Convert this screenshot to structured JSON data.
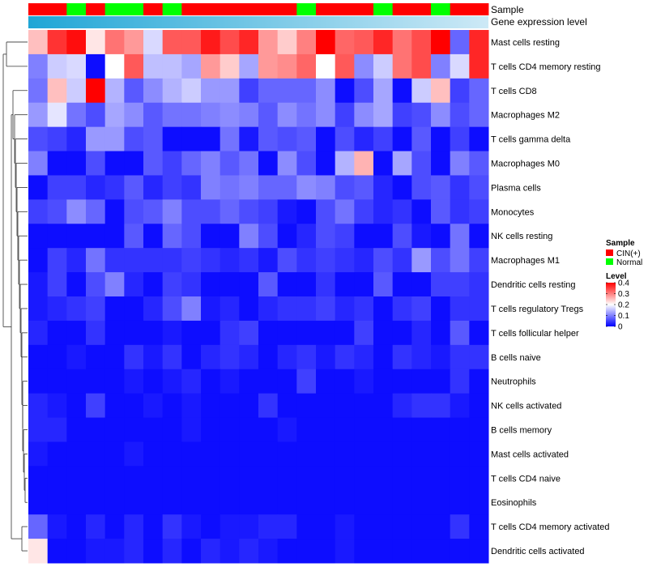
{
  "chart_data": {
    "type": "heatmap",
    "annotation_titles": [
      "Sample",
      "Gene expression level"
    ],
    "rows": [
      "Mast cells resting",
      "T cells CD4 memory resting",
      "T cells CD8",
      "Macrophages M2",
      "T cells gamma delta",
      "Macrophages M0",
      "Plasma cells",
      "Monocytes",
      "NK cells resting",
      "Macrophages M1",
      "Dendritic cells resting",
      "T cells regulatory  Tregs",
      "T cells follicular helper",
      "B cells naive",
      "Neutrophils",
      "NK cells activated",
      "B cells memory",
      "Mast cells activated",
      "T cells CD4 naive",
      "Eosinophils",
      "T cells CD4 memory activated",
      "Dendritic cells activated"
    ],
    "sample_groups": [
      "CIN(+)",
      "CIN(+)",
      "Normal",
      "CIN(+)",
      "Normal",
      "Normal",
      "CIN(+)",
      "Normal",
      "CIN(+)",
      "CIN(+)",
      "CIN(+)",
      "CIN(+)",
      "CIN(+)",
      "CIN(+)",
      "Normal",
      "CIN(+)",
      "CIN(+)",
      "CIN(+)",
      "Normal",
      "CIN(+)",
      "CIN(+)",
      "Normal",
      "CIN(+)",
      "CIN(+)"
    ],
    "values": [
      [
        0.25,
        0.36,
        0.39,
        0.22,
        0.31,
        0.28,
        0.17,
        0.33,
        0.33,
        0.38,
        0.34,
        0.37,
        0.28,
        0.24,
        0.3,
        0.4,
        0.32,
        0.33,
        0.37,
        0.31,
        0.34,
        0.4,
        0.08,
        0.37
      ],
      [
        0.1,
        0.16,
        0.17,
        0.01,
        0.2,
        0.33,
        0.15,
        0.15,
        0.13,
        0.28,
        0.24,
        0.13,
        0.28,
        0.29,
        0.32,
        0.2,
        0.33,
        0.11,
        0.16,
        0.31,
        0.34,
        0.1,
        0.17,
        0.37
      ],
      [
        0.09,
        0.25,
        0.16,
        0.4,
        0.14,
        0.07,
        0.11,
        0.14,
        0.16,
        0.12,
        0.12,
        0.05,
        0.08,
        0.08,
        0.08,
        0.11,
        0.01,
        0.06,
        0.13,
        0.01,
        0.16,
        0.25,
        0.05,
        0.08
      ],
      [
        0.12,
        0.18,
        0.09,
        0.06,
        0.13,
        0.11,
        0.07,
        0.09,
        0.09,
        0.1,
        0.11,
        0.1,
        0.07,
        0.11,
        0.09,
        0.11,
        0.05,
        0.11,
        0.13,
        0.05,
        0.06,
        0.11,
        0.06,
        0.08
      ],
      [
        0.06,
        0.05,
        0.03,
        0.12,
        0.12,
        0.06,
        0.07,
        0.01,
        0.01,
        0.01,
        0.09,
        0.02,
        0.07,
        0.06,
        0.07,
        0.01,
        0.06,
        0.03,
        0.05,
        0.01,
        0.07,
        0.01,
        0.05,
        0.01
      ],
      [
        0.1,
        0.01,
        0.01,
        0.06,
        0.01,
        0.01,
        0.07,
        0.05,
        0.08,
        0.1,
        0.07,
        0.09,
        0.01,
        0.11,
        0.06,
        0.01,
        0.14,
        0.26,
        0.01,
        0.13,
        0.06,
        0.01,
        0.1,
        0.07
      ],
      [
        0.01,
        0.05,
        0.05,
        0.03,
        0.04,
        0.07,
        0.03,
        0.05,
        0.04,
        0.1,
        0.09,
        0.1,
        0.08,
        0.08,
        0.11,
        0.1,
        0.06,
        0.07,
        0.03,
        0.01,
        0.06,
        0.07,
        0.04,
        0.06
      ],
      [
        0.05,
        0.06,
        0.11,
        0.08,
        0.01,
        0.06,
        0.07,
        0.1,
        0.06,
        0.06,
        0.08,
        0.06,
        0.05,
        0.02,
        0.01,
        0.06,
        0.09,
        0.05,
        0.03,
        0.04,
        0.01,
        0.07,
        0.04,
        0.05
      ],
      [
        0.01,
        0.01,
        0.01,
        0.01,
        0.01,
        0.07,
        0.01,
        0.08,
        0.06,
        0.01,
        0.01,
        0.1,
        0.06,
        0.01,
        0.03,
        0.06,
        0.05,
        0.01,
        0.01,
        0.06,
        0.02,
        0.01,
        0.09,
        0.01
      ],
      [
        0.01,
        0.05,
        0.03,
        0.09,
        0.04,
        0.04,
        0.04,
        0.04,
        0.05,
        0.04,
        0.03,
        0.04,
        0.02,
        0.06,
        0.04,
        0.05,
        0.04,
        0.03,
        0.06,
        0.04,
        0.12,
        0.06,
        0.09,
        0.05
      ],
      [
        0.02,
        0.05,
        0.01,
        0.06,
        0.1,
        0.03,
        0.01,
        0.05,
        0.04,
        0.01,
        0.01,
        0.01,
        0.07,
        0.01,
        0.01,
        0.04,
        0.01,
        0.01,
        0.07,
        0.01,
        0.01,
        0.05,
        0.05,
        0.04
      ],
      [
        0.02,
        0.03,
        0.04,
        0.05,
        0.01,
        0.01,
        0.03,
        0.06,
        0.1,
        0.02,
        0.03,
        0.01,
        0.03,
        0.04,
        0.04,
        0.05,
        0.03,
        0.04,
        0.01,
        0.04,
        0.05,
        0.01,
        0.04,
        0.04
      ],
      [
        0.03,
        0.01,
        0.01,
        0.04,
        0.01,
        0.01,
        0.01,
        0.02,
        0.01,
        0.01,
        0.04,
        0.05,
        0.01,
        0.01,
        0.01,
        0.01,
        0.01,
        0.05,
        0.01,
        0.01,
        0.03,
        0.01,
        0.07,
        0.01
      ],
      [
        0.01,
        0.01,
        0.02,
        0.01,
        0.01,
        0.04,
        0.02,
        0.04,
        0.01,
        0.03,
        0.04,
        0.03,
        0.01,
        0.03,
        0.04,
        0.02,
        0.04,
        0.03,
        0.01,
        0.04,
        0.03,
        0.02,
        0.04,
        0.04
      ],
      [
        0.01,
        0.01,
        0.01,
        0.01,
        0.01,
        0.02,
        0.01,
        0.02,
        0.03,
        0.01,
        0.02,
        0.01,
        0.01,
        0.01,
        0.05,
        0.01,
        0.01,
        0.02,
        0.01,
        0.01,
        0.01,
        0.01,
        0.04,
        0.01
      ],
      [
        0.03,
        0.02,
        0.01,
        0.05,
        0.01,
        0.01,
        0.02,
        0.01,
        0.02,
        0.01,
        0.01,
        0.01,
        0.04,
        0.01,
        0.01,
        0.01,
        0.01,
        0.01,
        0.01,
        0.03,
        0.04,
        0.04,
        0.02,
        0.01
      ],
      [
        0.03,
        0.03,
        0.01,
        0.01,
        0.01,
        0.01,
        0.01,
        0.01,
        0.02,
        0.01,
        0.01,
        0.01,
        0.01,
        0.02,
        0.01,
        0.01,
        0.01,
        0.01,
        0.01,
        0.01,
        0.01,
        0.01,
        0.01,
        0.01
      ],
      [
        0.02,
        0.01,
        0.01,
        0.01,
        0.01,
        0.02,
        0.01,
        0.01,
        0.01,
        0.01,
        0.01,
        0.01,
        0.01,
        0.01,
        0.01,
        0.01,
        0.01,
        0.01,
        0.01,
        0.01,
        0.01,
        0.01,
        0.01,
        0.01
      ],
      [
        0.01,
        0.01,
        0.01,
        0.01,
        0.01,
        0.01,
        0.01,
        0.01,
        0.01,
        0.01,
        0.01,
        0.01,
        0.01,
        0.01,
        0.01,
        0.01,
        0.01,
        0.01,
        0.01,
        0.01,
        0.01,
        0.01,
        0.01,
        0.01
      ],
      [
        0.01,
        0.01,
        0.01,
        0.01,
        0.01,
        0.01,
        0.01,
        0.01,
        0.01,
        0.01,
        0.01,
        0.01,
        0.01,
        0.01,
        0.01,
        0.01,
        0.01,
        0.01,
        0.01,
        0.01,
        0.01,
        0.01,
        0.01,
        0.01
      ],
      [
        0.08,
        0.02,
        0.01,
        0.03,
        0.01,
        0.03,
        0.01,
        0.04,
        0.02,
        0.01,
        0.02,
        0.02,
        0.03,
        0.03,
        0.01,
        0.01,
        0.02,
        0.01,
        0.01,
        0.01,
        0.01,
        0.01,
        0.04,
        0.01
      ],
      [
        0.22,
        0.01,
        0.01,
        0.02,
        0.02,
        0.03,
        0.01,
        0.03,
        0.01,
        0.03,
        0.02,
        0.03,
        0.02,
        0.01,
        0.01,
        0.01,
        0.02,
        0.01,
        0.01,
        0.01,
        0.01,
        0.01,
        0.01,
        0.01
      ]
    ],
    "color_scale": {
      "min": 0,
      "mid": 0.2,
      "max": 0.4,
      "low_color": "#0000ff",
      "mid_color": "#ffffff",
      "high_color": "#ff0000"
    },
    "gene_expression_gradient": [
      "#1fa6d6",
      "#cde9f6"
    ],
    "legend": {
      "sample_title": "Sample",
      "sample_items": [
        {
          "label": "CIN(+)",
          "color": "#ff0000"
        },
        {
          "label": "Normal",
          "color": "#00ff00"
        }
      ],
      "level_title": "Level",
      "level_ticks": [
        0.4,
        0.3,
        0.2,
        0.1,
        0
      ],
      "position": "right"
    }
  }
}
